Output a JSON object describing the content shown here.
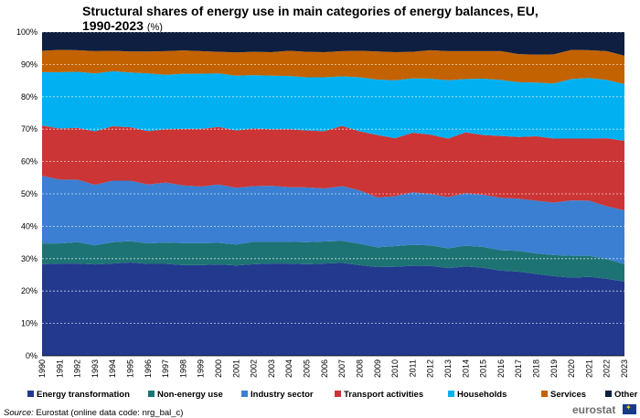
{
  "chart_data": {
    "type": "area",
    "stacked": true,
    "title": "Structural shares of energy use in main categories of energy balances, EU, 1990-2023",
    "unit": "(%)",
    "categories": [
      "1990",
      "1991",
      "1992",
      "1993",
      "1994",
      "1995",
      "1996",
      "1997",
      "1998",
      "1999",
      "2000",
      "2001",
      "2002",
      "2003",
      "2004",
      "2005",
      "2006",
      "2007",
      "2008",
      "2009",
      "2010",
      "2011",
      "2012",
      "2013",
      "2014",
      "2015",
      "2016",
      "2017",
      "2018",
      "2019",
      "2020",
      "2021",
      "2022",
      "2023"
    ],
    "ylim": [
      0,
      100
    ],
    "yticks": [
      "0%",
      "10%",
      "20%",
      "30%",
      "40%",
      "50%",
      "60%",
      "70%",
      "80%",
      "90%",
      "100%"
    ],
    "grid": true,
    "legend_position": "bottom",
    "series": [
      {
        "name": "Energy transformation",
        "color": "#22398e",
        "values": [
          28.3,
          28.5,
          28.5,
          28.2,
          28.5,
          28.8,
          28.4,
          28.4,
          28.0,
          28.0,
          28.2,
          27.9,
          28.3,
          28.5,
          28.5,
          28.3,
          28.5,
          28.7,
          28.0,
          27.4,
          27.5,
          27.8,
          27.8,
          27.1,
          27.6,
          27.2,
          26.3,
          26.0,
          25.3,
          24.6,
          24.1,
          24.4,
          23.8,
          22.9
        ]
      },
      {
        "name": "Non-energy use",
        "color": "#1d7373",
        "values": [
          6.4,
          6.2,
          6.6,
          5.9,
          6.6,
          6.6,
          6.3,
          6.6,
          6.8,
          6.8,
          6.7,
          6.5,
          6.9,
          6.7,
          6.7,
          6.8,
          6.8,
          6.8,
          6.6,
          6.1,
          6.4,
          6.5,
          6.3,
          6.1,
          6.4,
          6.4,
          6.3,
          6.4,
          6.3,
          6.5,
          6.8,
          6.5,
          6.1,
          5.4
        ]
      },
      {
        "name": "Industry sector",
        "color": "#3a7fd1",
        "values": [
          20.9,
          19.7,
          19.3,
          18.7,
          19.0,
          18.7,
          18.2,
          18.5,
          17.8,
          17.5,
          18.0,
          17.5,
          17.2,
          17.3,
          16.9,
          16.9,
          16.4,
          16.9,
          16.5,
          15.4,
          15.4,
          16.2,
          15.9,
          15.8,
          16.2,
          16.1,
          16.2,
          16.1,
          16.3,
          16.2,
          17.1,
          17.0,
          16.3,
          16.6
        ]
      },
      {
        "name": "Transport activities",
        "color": "#cb3535",
        "values": [
          15.5,
          15.8,
          16.0,
          16.5,
          16.8,
          16.5,
          16.5,
          16.5,
          17.5,
          17.8,
          17.8,
          17.7,
          17.8,
          17.5,
          17.9,
          17.6,
          17.7,
          18.6,
          18.2,
          19.3,
          17.9,
          18.4,
          18.3,
          18.1,
          18.8,
          18.5,
          19.1,
          19.1,
          19.9,
          19.8,
          19.1,
          19.2,
          21.0,
          21.5
        ]
      },
      {
        "name": "Households",
        "color": "#00b0f0",
        "values": [
          16.5,
          17.4,
          17.3,
          17.9,
          17.0,
          16.9,
          17.8,
          16.8,
          17.0,
          17.0,
          16.5,
          16.9,
          16.5,
          16.5,
          16.4,
          16.4,
          16.6,
          15.3,
          16.7,
          17.1,
          17.9,
          16.8,
          17.3,
          18.0,
          16.5,
          17.4,
          17.3,
          16.9,
          16.6,
          17.0,
          18.4,
          18.7,
          18.0,
          17.5
        ]
      },
      {
        "name": "Services",
        "color": "#c36200",
        "values": [
          6.6,
          6.9,
          6.7,
          6.9,
          6.3,
          6.5,
          6.8,
          7.3,
          7.2,
          7.0,
          6.7,
          7.2,
          7.2,
          7.3,
          7.8,
          7.9,
          7.8,
          7.8,
          8.2,
          8.7,
          8.7,
          8.2,
          8.8,
          9.0,
          8.6,
          8.5,
          8.9,
          8.7,
          8.6,
          9.0,
          9.0,
          8.6,
          8.9,
          8.8
        ]
      },
      {
        "name": "Other",
        "color": "#0e1f41",
        "values": [
          5.8,
          5.5,
          5.6,
          5.9,
          5.8,
          6.0,
          6.0,
          5.9,
          5.7,
          5.9,
          6.1,
          6.3,
          6.1,
          6.2,
          5.8,
          6.1,
          6.2,
          5.9,
          5.8,
          6.0,
          6.2,
          6.1,
          5.6,
          5.9,
          5.9,
          5.9,
          5.9,
          6.8,
          7.0,
          6.9,
          5.5,
          5.6,
          5.9,
          7.3
        ]
      }
    ]
  },
  "footer": {
    "source_label": "Source:",
    "source_text": "Eurostat (online data code: nrg_bal_c)",
    "logo_text": "eurostat"
  }
}
